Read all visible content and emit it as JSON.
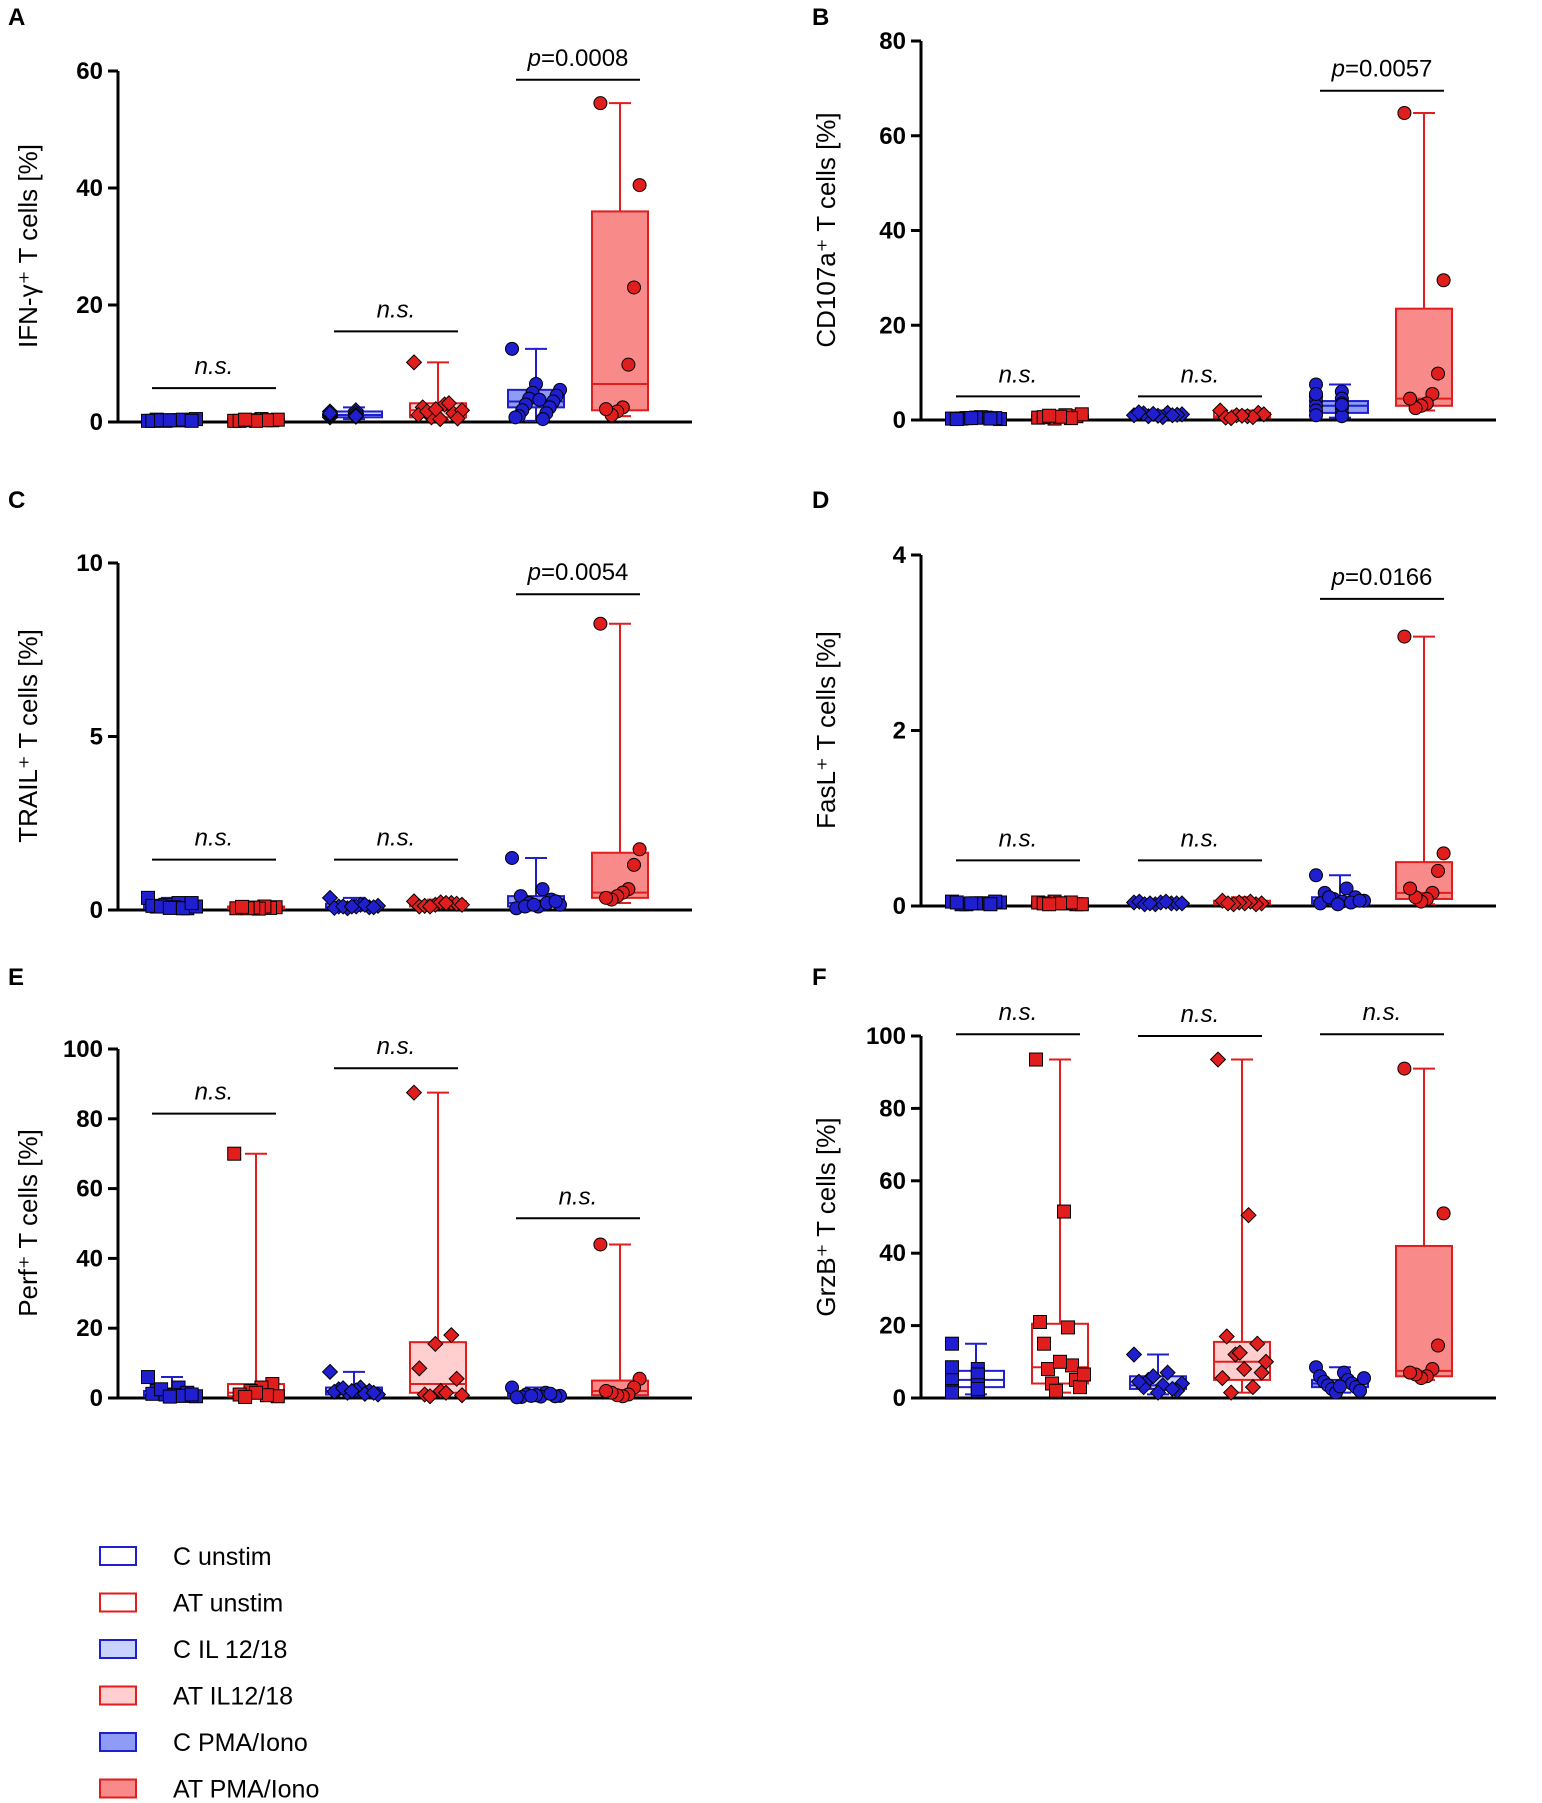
{
  "legend": [
    {
      "label": "C unstim",
      "stroke": "#1f1fd0",
      "fill": "#ffffff"
    },
    {
      "label": "AT unstim",
      "stroke": "#e01e1e",
      "fill": "#ffffff"
    },
    {
      "label": "C IL 12/18",
      "stroke": "#1f1fd0",
      "fill": "#c9d3ff"
    },
    {
      "label": "AT IL12/18",
      "stroke": "#e01e1e",
      "fill": "#ffcfcf"
    },
    {
      "label": "C PMA/Iono",
      "stroke": "#1f1fd0",
      "fill": "#8f9cf5"
    },
    {
      "label": "AT PMA/Iono",
      "stroke": "#e01e1e",
      "fill": "#f98a8a"
    }
  ],
  "chart_data": [
    {
      "panel": "A",
      "type": "box",
      "ylabel": "IFN-γ⁺ T cells [%]",
      "ylim": [
        0,
        60
      ],
      "ticks": [
        0,
        20,
        40,
        60
      ],
      "groups": [
        {
          "name": "C unstim",
          "marker": "square",
          "min": 0.1,
          "q1": 0.2,
          "median": 0.3,
          "q3": 0.5,
          "max": 0.8,
          "points": [
            0.2,
            0.3,
            0.4,
            0.3,
            0.2,
            0.5,
            0.3,
            0.2,
            0.4,
            0.3,
            0.2,
            0.3
          ]
        },
        {
          "name": "AT unstim",
          "marker": "square",
          "min": 0.1,
          "q1": 0.2,
          "median": 0.3,
          "q3": 0.5,
          "max": 0.8,
          "points": [
            0.2,
            0.3,
            0.5,
            0.3,
            0.2,
            0.4,
            0.3,
            0.2,
            0.4
          ]
        },
        {
          "name": "C IL 12/18",
          "marker": "diamond",
          "min": 0.5,
          "q1": 0.8,
          "median": 1.2,
          "q3": 1.8,
          "max": 2.5,
          "points": [
            1.0,
            1.5,
            1.2,
            2.0,
            0.8,
            1.4,
            1.1,
            1.6,
            1.3,
            0.9,
            1.8,
            1.2,
            1.5,
            1.0
          ]
        },
        {
          "name": "AT IL12/18",
          "marker": "diamond",
          "min": 0.3,
          "q1": 0.8,
          "median": 2.0,
          "q3": 3.2,
          "max": 10.2,
          "points": [
            10.2,
            3.0,
            2.5,
            1.5,
            0.8,
            2.0,
            0.5,
            1.2,
            3.2,
            1.8,
            0.6,
            2.2
          ]
        },
        {
          "name": "C PMA/Iono",
          "marker": "circle",
          "min": 0.2,
          "q1": 2.5,
          "median": 3.5,
          "q3": 5.5,
          "max": 12.5,
          "points": [
            12.5,
            6.5,
            5.5,
            5.0,
            4.5,
            4.0,
            3.5,
            3.0,
            2.5,
            2.0,
            1.5,
            1.0,
            0.5,
            0.8,
            3.8
          ]
        },
        {
          "name": "AT PMA/Iono",
          "marker": "circle",
          "min": 1.0,
          "q1": 2.0,
          "median": 6.5,
          "q3": 36.0,
          "max": 54.5,
          "points": [
            54.5,
            40.5,
            23.0,
            9.8,
            2.5,
            1.8,
            1.2,
            2.2
          ]
        }
      ],
      "comparisons": [
        {
          "label": "n.s.",
          "value": 5.8,
          "from": 0,
          "to": 1
        },
        {
          "label": "n.s.",
          "value": 15.5,
          "from": 2,
          "to": 3
        },
        {
          "label": "p=0.0008",
          "value": 58.5,
          "from": 4,
          "to": 5
        }
      ]
    },
    {
      "panel": "B",
      "type": "box",
      "ylabel": "CD107a⁺ T cells [%]",
      "ylim": [
        0,
        80
      ],
      "ticks": [
        0,
        20,
        40,
        60,
        80
      ],
      "groups": [
        {
          "name": "C unstim",
          "marker": "square",
          "min": 0.1,
          "q1": 0.2,
          "median": 0.3,
          "q3": 0.6,
          "max": 1.0,
          "points": [
            0.3,
            0.5,
            0.4,
            0.2,
            0.6,
            0.3,
            0.4,
            0.5,
            0.2,
            0.3,
            0.4
          ]
        },
        {
          "name": "AT unstim",
          "marker": "square",
          "min": 0.1,
          "q1": 0.3,
          "median": 0.5,
          "q3": 1.0,
          "max": 1.5,
          "points": [
            0.5,
            0.8,
            1.0,
            0.3,
            0.6,
            1.2,
            0.4,
            0.7,
            0.9
          ]
        },
        {
          "name": "C IL 12/18",
          "marker": "diamond",
          "min": 0.3,
          "q1": 0.6,
          "median": 1.0,
          "q3": 1.5,
          "max": 2.0,
          "points": [
            1.0,
            1.5,
            0.8,
            1.2,
            0.6,
            1.4,
            1.1,
            0.9,
            1.6,
            1.0,
            1.3
          ]
        },
        {
          "name": "AT IL12/18",
          "marker": "diamond",
          "min": 0.3,
          "q1": 0.5,
          "median": 0.8,
          "q3": 1.5,
          "max": 2.0,
          "points": [
            2.0,
            1.5,
            0.8,
            1.0,
            0.5,
            1.2,
            0.6,
            0.9,
            0.4
          ]
        },
        {
          "name": "C PMA/Iono",
          "marker": "circle",
          "min": 0.5,
          "q1": 1.5,
          "median": 3.0,
          "q3": 4.0,
          "max": 7.5,
          "points": [
            7.5,
            6.0,
            5.0,
            4.5,
            4.0,
            3.5,
            3.0,
            2.5,
            2.0,
            1.5,
            1.0,
            0.8,
            5.5,
            3.2
          ]
        },
        {
          "name": "AT PMA/Iono",
          "marker": "circle",
          "min": 2.0,
          "q1": 3.0,
          "median": 4.5,
          "q3": 23.5,
          "max": 64.8,
          "points": [
            64.8,
            29.5,
            9.8,
            5.5,
            3.5,
            3.0,
            2.5,
            4.5
          ]
        }
      ],
      "comparisons": [
        {
          "label": "n.s.",
          "value": 5.0,
          "from": 0,
          "to": 1
        },
        {
          "label": "n.s.",
          "value": 5.0,
          "from": 2,
          "to": 3
        },
        {
          "label": "p=0.0057",
          "value": 69.5,
          "from": 4,
          "to": 5
        }
      ]
    },
    {
      "panel": "C",
      "type": "box",
      "ylabel": "TRAIL⁺ T cells [%]",
      "ylim": [
        0,
        10
      ],
      "ticks": [
        0,
        5,
        10
      ],
      "groups": [
        {
          "name": "C unstim",
          "marker": "square",
          "min": 0.02,
          "q1": 0.05,
          "median": 0.1,
          "q3": 0.2,
          "max": 0.35,
          "points": [
            0.35,
            0.2,
            0.1,
            0.05,
            0.15,
            0.1,
            0.08,
            0.12,
            0.05,
            0.1,
            0.2,
            0.06
          ]
        },
        {
          "name": "AT unstim",
          "marker": "square",
          "min": 0.02,
          "q1": 0.04,
          "median": 0.06,
          "q3": 0.1,
          "max": 0.15,
          "points": [
            0.05,
            0.08,
            0.06,
            0.1,
            0.04,
            0.07,
            0.05,
            0.09
          ]
        },
        {
          "name": "C IL 12/18",
          "marker": "diamond",
          "min": 0.02,
          "q1": 0.05,
          "median": 0.1,
          "q3": 0.18,
          "max": 0.35,
          "points": [
            0.35,
            0.15,
            0.1,
            0.08,
            0.05,
            0.12,
            0.1,
            0.06,
            0.15,
            0.1,
            0.08,
            0.1
          ]
        },
        {
          "name": "AT IL12/18",
          "marker": "diamond",
          "min": 0.05,
          "q1": 0.1,
          "median": 0.15,
          "q3": 0.25,
          "max": 0.3,
          "points": [
            0.25,
            0.2,
            0.15,
            0.1,
            0.18,
            0.22,
            0.12,
            0.15,
            0.2,
            0.1
          ]
        },
        {
          "name": "C PMA/Iono",
          "marker": "circle",
          "min": 0.02,
          "q1": 0.1,
          "median": 0.2,
          "q3": 0.4,
          "max": 1.5,
          "points": [
            1.5,
            0.6,
            0.4,
            0.3,
            0.2,
            0.15,
            0.1,
            0.05,
            0.2,
            0.1,
            0.25,
            0.15
          ]
        },
        {
          "name": "AT PMA/Iono",
          "marker": "circle",
          "min": 0.2,
          "q1": 0.35,
          "median": 0.5,
          "q3": 1.65,
          "max": 8.25,
          "points": [
            8.25,
            1.75,
            1.3,
            0.6,
            0.5,
            0.4,
            0.3,
            0.35
          ]
        }
      ],
      "comparisons": [
        {
          "label": "n.s.",
          "value": 1.45,
          "from": 0,
          "to": 1
        },
        {
          "label": "n.s.",
          "value": 1.45,
          "from": 2,
          "to": 3
        },
        {
          "label": "p=0.0054",
          "value": 9.1,
          "from": 4,
          "to": 5
        }
      ]
    },
    {
      "panel": "D",
      "type": "box",
      "ylabel": "FasL⁺ T cells [%]",
      "ylim": [
        0,
        4
      ],
      "ticks": [
        0,
        2,
        4
      ],
      "groups": [
        {
          "name": "C unstim",
          "marker": "square",
          "min": 0.01,
          "q1": 0.02,
          "median": 0.03,
          "q3": 0.05,
          "max": 0.08,
          "points": [
            0.05,
            0.03,
            0.02,
            0.04,
            0.03,
            0.02,
            0.05,
            0.03,
            0.04,
            0.02,
            0.03
          ]
        },
        {
          "name": "AT unstim",
          "marker": "square",
          "min": 0.01,
          "q1": 0.02,
          "median": 0.03,
          "q3": 0.05,
          "max": 0.07,
          "points": [
            0.04,
            0.02,
            0.03,
            0.05,
            0.03,
            0.02,
            0.04,
            0.03,
            0.02
          ]
        },
        {
          "name": "C IL 12/18",
          "marker": "diamond",
          "min": 0.01,
          "q1": 0.02,
          "median": 0.03,
          "q3": 0.05,
          "max": 0.07,
          "points": [
            0.04,
            0.03,
            0.02,
            0.05,
            0.03,
            0.04,
            0.02,
            0.03,
            0.05,
            0.03
          ]
        },
        {
          "name": "AT IL12/18",
          "marker": "diamond",
          "min": 0.01,
          "q1": 0.02,
          "median": 0.03,
          "q3": 0.06,
          "max": 0.1,
          "points": [
            0.06,
            0.03,
            0.02,
            0.05,
            0.03,
            0.04,
            0.02,
            0.03
          ]
        },
        {
          "name": "C PMA/Iono",
          "marker": "circle",
          "min": 0.01,
          "q1": 0.03,
          "median": 0.06,
          "q3": 0.1,
          "max": 0.35,
          "points": [
            0.35,
            0.2,
            0.15,
            0.1,
            0.08,
            0.06,
            0.05,
            0.03,
            0.04,
            0.1,
            0.06,
            0.02
          ]
        },
        {
          "name": "AT PMA/Iono",
          "marker": "circle",
          "min": 0.02,
          "q1": 0.08,
          "median": 0.15,
          "q3": 0.5,
          "max": 3.07,
          "points": [
            3.07,
            0.6,
            0.4,
            0.15,
            0.08,
            0.05,
            0.1,
            0.2
          ]
        }
      ],
      "comparisons": [
        {
          "label": "n.s.",
          "value": 0.52,
          "from": 0,
          "to": 1
        },
        {
          "label": "n.s.",
          "value": 0.52,
          "from": 2,
          "to": 3
        },
        {
          "label": "p=0.0166",
          "value": 3.5,
          "from": 4,
          "to": 5
        }
      ]
    },
    {
      "panel": "E",
      "type": "box",
      "ylabel": "Perf⁺ T cells [%]",
      "ylim": [
        0,
        100
      ],
      "ticks": [
        0,
        20,
        40,
        60,
        80,
        100
      ],
      "groups": [
        {
          "name": "C unstim",
          "marker": "square",
          "min": 0.2,
          "q1": 0.5,
          "median": 1.0,
          "q3": 2.0,
          "max": 6.0,
          "points": [
            6.0,
            3.0,
            2.0,
            1.5,
            1.0,
            0.5,
            0.8,
            1.2,
            0.6,
            2.5,
            1.0,
            0.4
          ]
        },
        {
          "name": "AT unstim",
          "marker": "square",
          "min": 0.1,
          "q1": 0.5,
          "median": 1.5,
          "q3": 4.0,
          "max": 70.0,
          "points": [
            70.0,
            4.0,
            3.0,
            2.0,
            1.0,
            0.5,
            0.8,
            1.5,
            0.3
          ]
        },
        {
          "name": "C IL 12/18",
          "marker": "diamond",
          "min": 0.5,
          "q1": 1.0,
          "median": 2.0,
          "q3": 3.0,
          "max": 7.5,
          "points": [
            7.5,
            3.0,
            2.5,
            2.0,
            1.5,
            1.0,
            2.2,
            1.8,
            1.2,
            2.8,
            1.5,
            2.0
          ]
        },
        {
          "name": "AT IL12/18",
          "marker": "diamond",
          "min": 0.5,
          "q1": 1.5,
          "median": 4.0,
          "q3": 16.0,
          "max": 87.5,
          "points": [
            87.5,
            18.0,
            15.5,
            8.5,
            5.5,
            2.0,
            1.0,
            0.8,
            1.5,
            0.5
          ]
        },
        {
          "name": "C PMA/Iono",
          "marker": "circle",
          "min": 0.1,
          "q1": 0.3,
          "median": 0.6,
          "q3": 1.2,
          "max": 3.0,
          "points": [
            3.0,
            1.5,
            1.0,
            0.6,
            0.4,
            0.3,
            0.5,
            0.8,
            0.2,
            1.2,
            0.6
          ]
        },
        {
          "name": "AT PMA/Iono",
          "marker": "circle",
          "min": 0.3,
          "q1": 0.8,
          "median": 2.0,
          "q3": 5.0,
          "max": 44.0,
          "points": [
            44.0,
            5.5,
            3.0,
            1.0,
            0.5,
            0.8,
            1.5,
            2.0
          ]
        }
      ],
      "comparisons": [
        {
          "label": "n.s.",
          "value": 81.5,
          "from": 0,
          "to": 1
        },
        {
          "label": "n.s.",
          "value": 94.5,
          "from": 2,
          "to": 3
        },
        {
          "label": "n.s.",
          "value": 51.5,
          "from": 4,
          "to": 5
        }
      ]
    },
    {
      "panel": "F",
      "type": "box",
      "ylabel": "GrzB⁺ T cells [%]",
      "ylim": [
        0,
        100
      ],
      "ticks": [
        0,
        20,
        40,
        60,
        80,
        100
      ],
      "groups": [
        {
          "name": "C unstim",
          "marker": "square",
          "min": 1.0,
          "q1": 3.0,
          "median": 5.0,
          "q3": 7.5,
          "max": 15.0,
          "points": [
            15.0,
            8.0,
            7.0,
            6.0,
            5.0,
            4.0,
            3.0,
            2.0,
            1.5,
            6.5,
            5.5,
            3.5,
            8.5,
            2.5
          ]
        },
        {
          "name": "AT unstim",
          "marker": "square",
          "min": 1.5,
          "q1": 4.0,
          "median": 8.5,
          "q3": 20.5,
          "max": 93.5,
          "points": [
            93.5,
            51.5,
            21.0,
            19.5,
            15.0,
            9.0,
            8.0,
            5.0,
            4.0,
            3.0,
            2.0,
            6.5,
            10.0
          ]
        },
        {
          "name": "C IL 12/18",
          "marker": "diamond",
          "min": 1.0,
          "q1": 2.5,
          "median": 3.5,
          "q3": 6.0,
          "max": 12.0,
          "points": [
            12.0,
            7.0,
            5.0,
            4.0,
            3.5,
            3.0,
            2.0,
            1.5,
            4.5,
            2.5,
            6.0
          ]
        },
        {
          "name": "AT IL12/18",
          "marker": "diamond",
          "min": 1.5,
          "q1": 5.0,
          "median": 10.0,
          "q3": 15.5,
          "max": 93.5,
          "points": [
            93.5,
            50.5,
            17.0,
            15.0,
            12.0,
            10.0,
            8.0,
            5.5,
            3.0,
            1.5,
            7.0,
            12.5
          ]
        },
        {
          "name": "C PMA/Iono",
          "marker": "circle",
          "min": 1.5,
          "q1": 3.0,
          "median": 4.0,
          "q3": 5.0,
          "max": 8.5,
          "points": [
            8.5,
            7.0,
            6.0,
            5.0,
            4.5,
            4.0,
            3.5,
            3.0,
            2.5,
            2.0,
            1.5,
            5.5,
            3.2
          ]
        },
        {
          "name": "AT PMA/Iono",
          "marker": "circle",
          "min": 5.0,
          "q1": 6.0,
          "median": 7.5,
          "q3": 42.0,
          "max": 91.0,
          "points": [
            91.0,
            51.0,
            14.5,
            8.0,
            6.0,
            5.5,
            6.5,
            7.0
          ]
        }
      ],
      "comparisons": [
        {
          "label": "n.s.",
          "value": 100.5,
          "from": 0,
          "to": 1
        },
        {
          "label": "n.s.",
          "value": 100.0,
          "from": 2,
          "to": 3
        },
        {
          "label": "n.s.",
          "value": 100.5,
          "from": 4,
          "to": 5
        }
      ]
    }
  ]
}
